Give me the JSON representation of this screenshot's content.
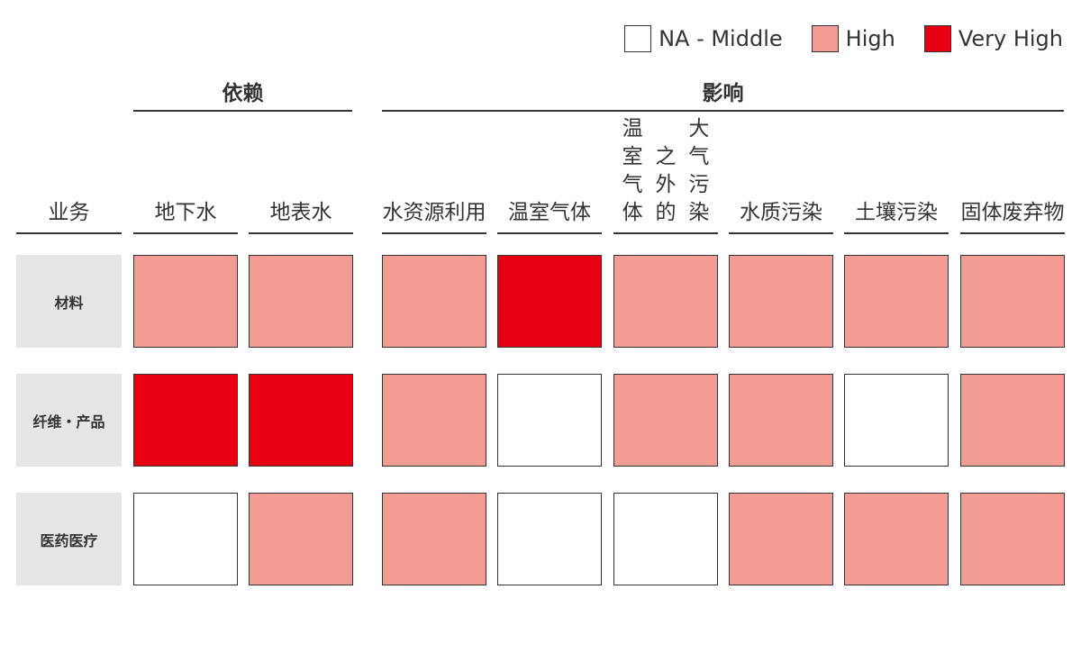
{
  "legend": [
    {
      "label": "NA - Middle",
      "level": "na_middle",
      "color": "#ffffff"
    },
    {
      "label": "High",
      "level": "high",
      "color": "#f29c94"
    },
    {
      "label": "Very High",
      "level": "very_high",
      "color": "#e60012"
    }
  ],
  "groups": {
    "dependency": "依赖",
    "impact": "影响"
  },
  "row_header": "业务",
  "columns": [
    "地下水",
    "地表水",
    "水资源\n利用",
    "温室气体",
    "温室气体\n之外的\n大气污染",
    "水质污染",
    "土壤污染",
    "固体\n废弃物"
  ],
  "rows": [
    "材料",
    "纤维・产品",
    "医药医疗"
  ],
  "chart_data": {
    "type": "heatmap",
    "title": "",
    "column_groups": [
      {
        "name": "依赖",
        "columns": [
          "地下水",
          "地表水"
        ]
      },
      {
        "name": "影响",
        "columns": [
          "水资源利用",
          "温室气体",
          "温室气体之外的大气污染",
          "水质污染",
          "土壤污染",
          "固体废弃物"
        ]
      }
    ],
    "x": [
      "地下水",
      "地表水",
      "水资源利用",
      "温室气体",
      "温室气体之外的大气污染",
      "水质污染",
      "土壤污染",
      "固体废弃物"
    ],
    "y": [
      "材料",
      "纤维・产品",
      "医药医疗"
    ],
    "levels": [
      "NA - Middle",
      "High",
      "Very High"
    ],
    "values": [
      [
        1,
        1,
        1,
        2,
        1,
        1,
        1,
        1
      ],
      [
        2,
        2,
        1,
        0,
        1,
        1,
        0,
        1
      ],
      [
        0,
        1,
        1,
        0,
        0,
        1,
        1,
        1
      ]
    ],
    "legend_position": "top-right"
  }
}
